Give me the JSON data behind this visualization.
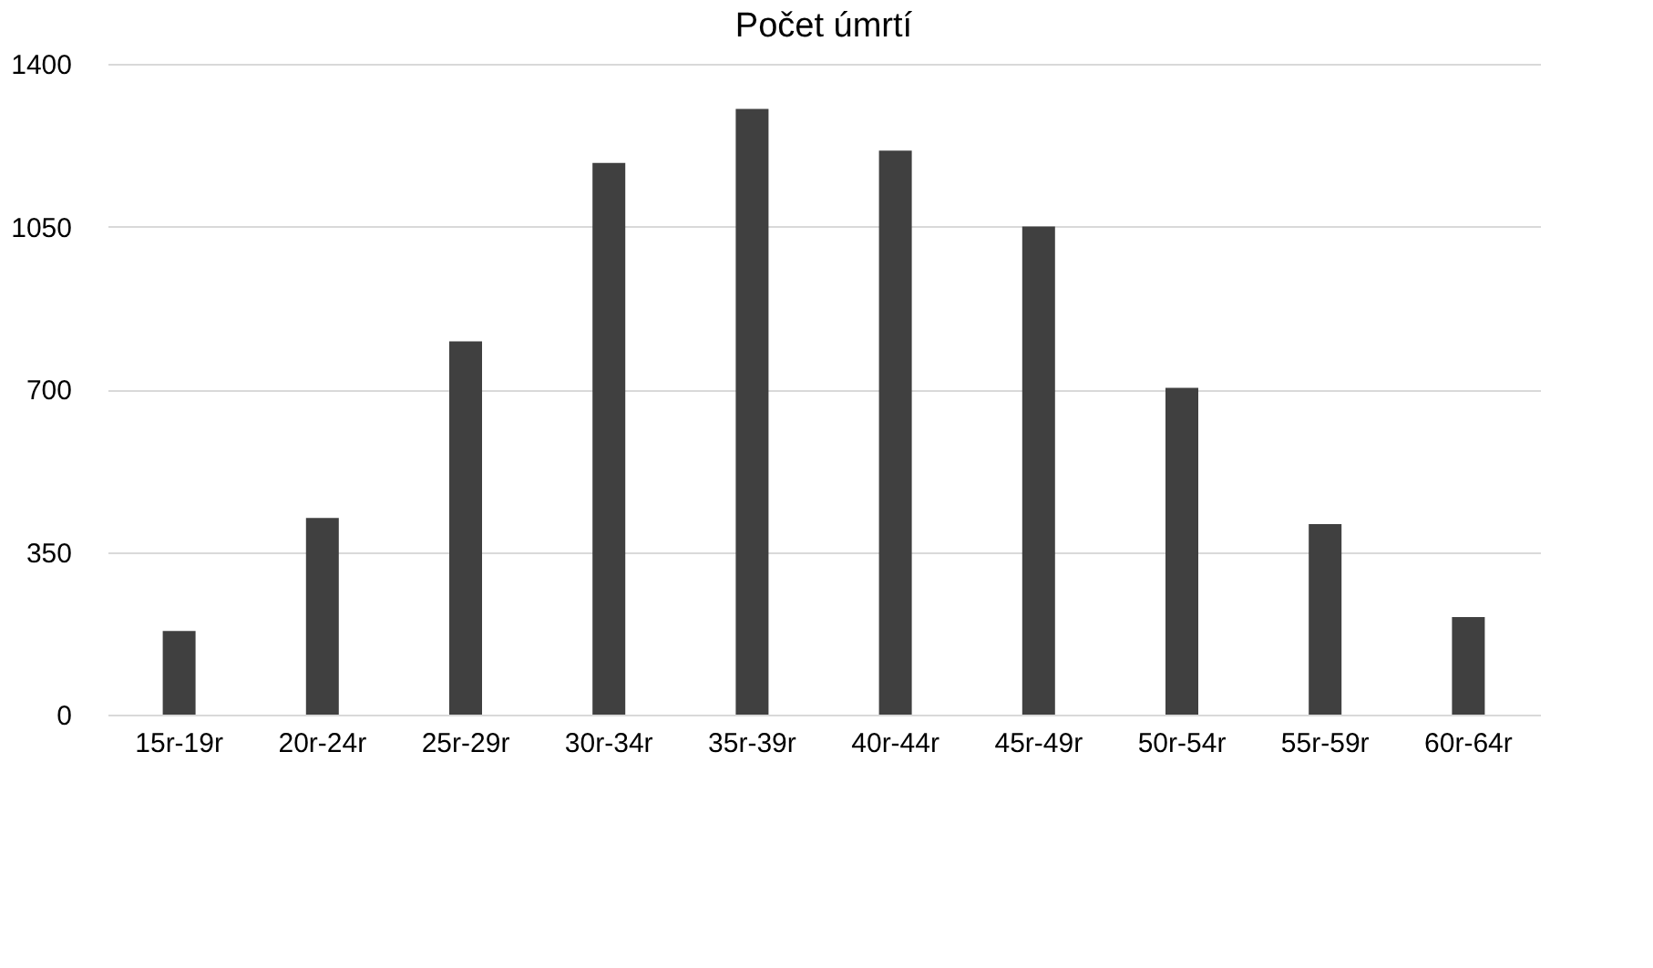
{
  "chart_data": {
    "type": "bar",
    "title": "Počet úmrtí",
    "categories": [
      "15r-19r",
      "20r-24r",
      "25r-29r",
      "30r-34r",
      "35r-39r",
      "40r-44r",
      "45r-49r",
      "50r-54r",
      "55r-59r",
      "60r-64r"
    ],
    "values": [
      180,
      423,
      803,
      1187,
      1303,
      1213,
      1050,
      703,
      410,
      210
    ],
    "color": "#404040",
    "ylim": [
      0,
      1400
    ],
    "yticks": [
      0,
      350,
      700,
      1050,
      1400
    ],
    "grid": "y"
  }
}
